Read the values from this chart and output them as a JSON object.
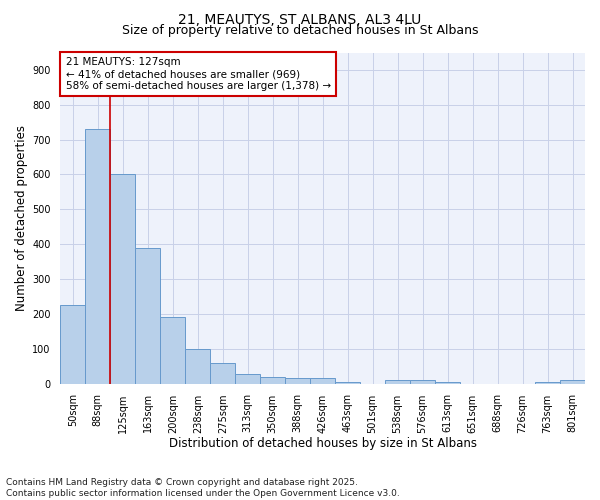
{
  "title_line1": "21, MEAUTYS, ST ALBANS, AL3 4LU",
  "title_line2": "Size of property relative to detached houses in St Albans",
  "xlabel": "Distribution of detached houses by size in St Albans",
  "ylabel": "Number of detached properties",
  "categories": [
    "50sqm",
    "88sqm",
    "125sqm",
    "163sqm",
    "200sqm",
    "238sqm",
    "275sqm",
    "313sqm",
    "350sqm",
    "388sqm",
    "426sqm",
    "463sqm",
    "501sqm",
    "538sqm",
    "576sqm",
    "613sqm",
    "651sqm",
    "688sqm",
    "726sqm",
    "763sqm",
    "801sqm"
  ],
  "values": [
    225,
    730,
    600,
    390,
    190,
    100,
    58,
    28,
    20,
    16,
    16,
    5,
    0,
    10,
    10,
    5,
    0,
    0,
    0,
    5,
    10
  ],
  "bar_color": "#b8d0ea",
  "bar_edge_color": "#6699cc",
  "vline_color": "#cc0000",
  "annotation_text": "21 MEAUTYS: 127sqm\n← 41% of detached houses are smaller (969)\n58% of semi-detached houses are larger (1,378) →",
  "annotation_box_facecolor": "#ffffff",
  "annotation_box_edgecolor": "#cc0000",
  "ylim": [
    0,
    950
  ],
  "yticks": [
    0,
    100,
    200,
    300,
    400,
    500,
    600,
    700,
    800,
    900
  ],
  "footnote": "Contains HM Land Registry data © Crown copyright and database right 2025.\nContains public sector information licensed under the Open Government Licence v3.0.",
  "bg_color": "#ffffff",
  "plot_bg_color": "#eef2fb",
  "grid_color": "#c8d0e8",
  "title_fontsize": 10,
  "subtitle_fontsize": 9,
  "axis_label_fontsize": 8.5,
  "tick_fontsize": 7,
  "annot_fontsize": 7.5,
  "footnote_fontsize": 6.5
}
